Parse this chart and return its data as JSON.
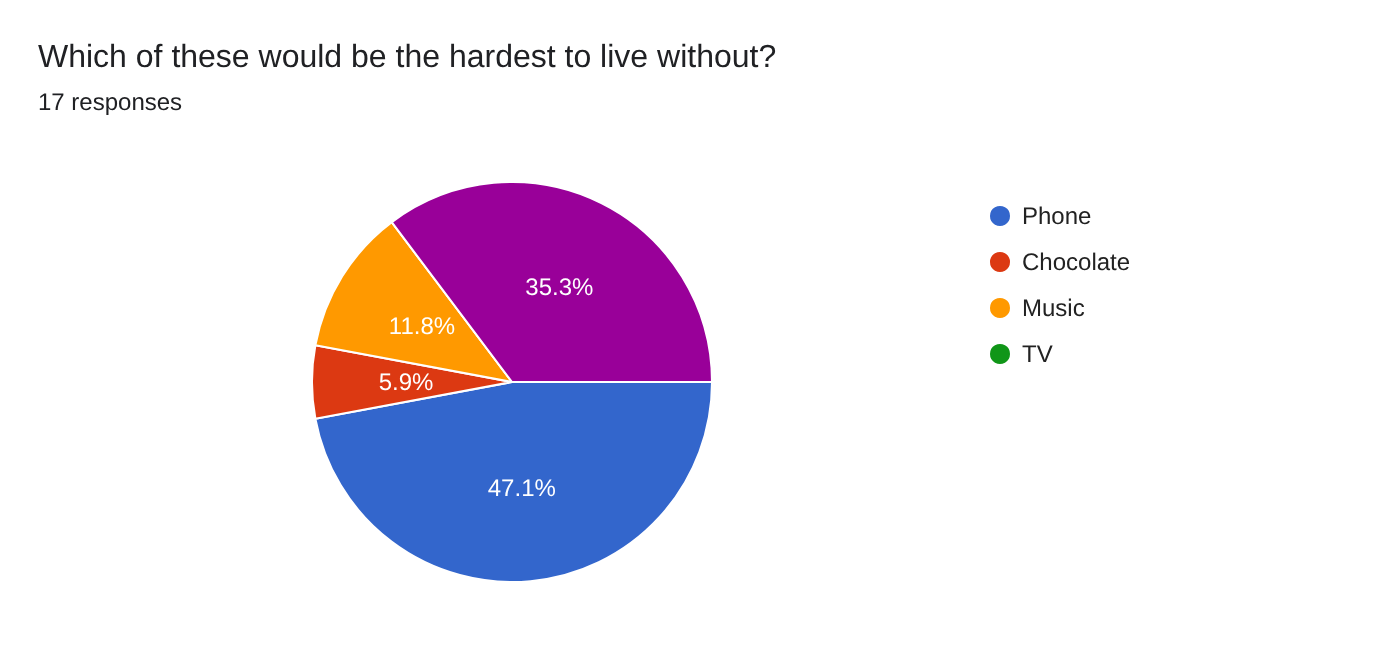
{
  "chart_data": {
    "type": "pie",
    "title": "Which of these would be the hardest to live without?",
    "subtitle": "17 responses",
    "categories": [
      "Phone",
      "Chocolate",
      "Music",
      "TV",
      null
    ],
    "values": [
      47.1,
      5.9,
      11.8,
      0,
      35.3
    ],
    "colors": [
      "#3366cc",
      "#dc3912",
      "#ff9900",
      "#109618",
      "#990099"
    ],
    "value_labels": [
      "47.1%",
      "5.9%",
      "11.8%",
      null,
      "35.3%"
    ],
    "legend": "right"
  }
}
